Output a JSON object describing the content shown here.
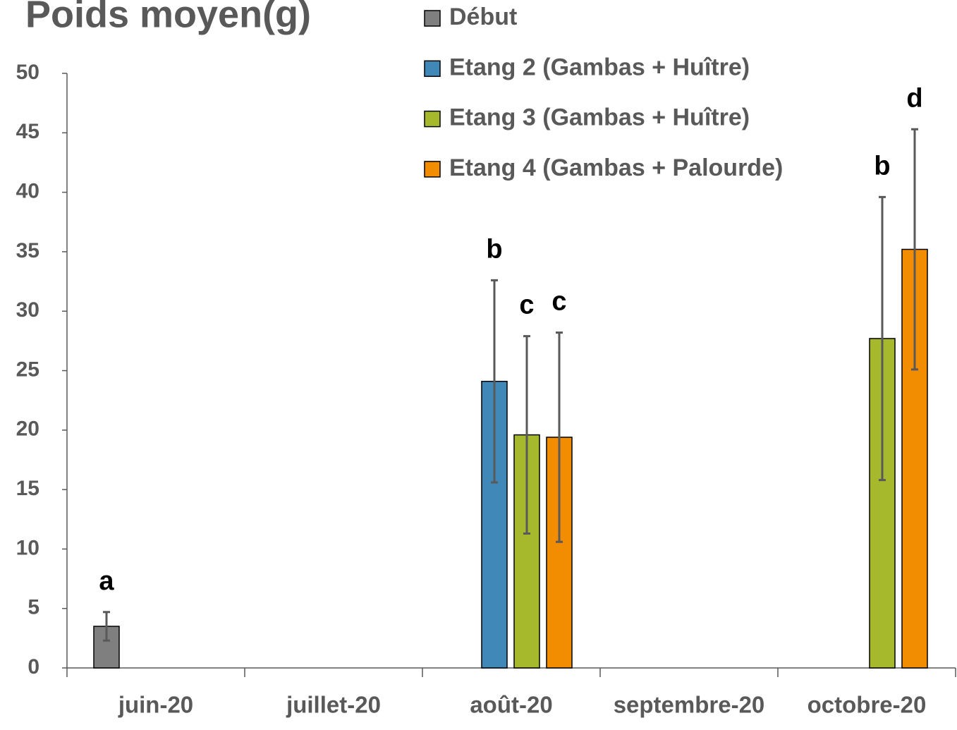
{
  "chart_data": {
    "type": "bar",
    "title": "Poids moyen(g)",
    "categories": [
      "juin-20",
      "juillet-20",
      "août-20",
      "septembre-20",
      "octobre-20"
    ],
    "series": [
      {
        "name": "Début",
        "color": "#7f7f7f",
        "values": [
          3.5,
          null,
          null,
          null,
          null
        ],
        "errors": [
          1.2,
          null,
          null,
          null,
          null
        ],
        "letters": [
          "a",
          null,
          null,
          null,
          null
        ]
      },
      {
        "name": "Etang 2 (Gambas + Huître)",
        "color": "#3f88b7",
        "values": [
          null,
          null,
          24.1,
          null,
          null
        ],
        "errors": [
          null,
          null,
          8.5,
          null,
          null
        ],
        "letters": [
          null,
          null,
          "b",
          null,
          null
        ]
      },
      {
        "name": "Etang 3 (Gambas + Huître)",
        "color": "#a6b92d",
        "values": [
          null,
          null,
          19.6,
          null,
          27.7
        ],
        "errors": [
          null,
          null,
          8.3,
          null,
          11.9
        ],
        "letters": [
          null,
          null,
          "c",
          null,
          "b"
        ]
      },
      {
        "name": "Etang 4 (Gambas + Palourde)",
        "color": "#f28c00",
        "values": [
          null,
          null,
          19.4,
          null,
          35.2
        ],
        "errors": [
          null,
          null,
          8.8,
          null,
          10.1
        ],
        "letters": [
          null,
          null,
          "c",
          null,
          "d"
        ]
      }
    ],
    "ylim": [
      0,
      50
    ],
    "yticks": [
      0,
      5,
      10,
      15,
      20,
      25,
      30,
      35,
      40,
      45,
      50
    ],
    "grid": false,
    "legend": "top"
  }
}
